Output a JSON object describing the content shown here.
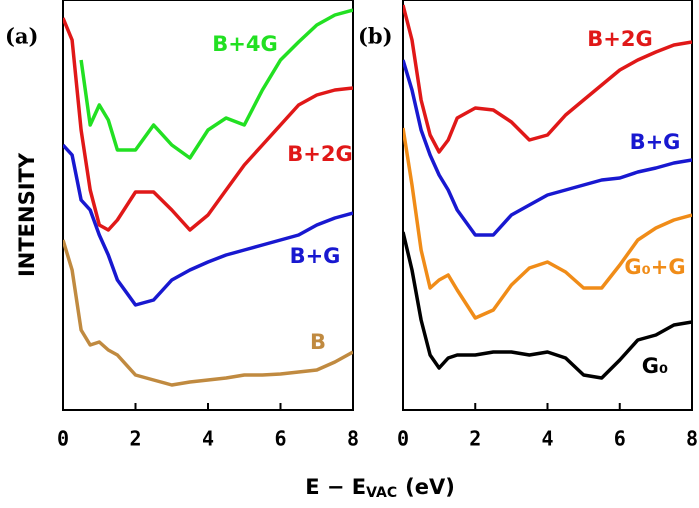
{
  "ylabel": "INTENSITY",
  "xlabel": {
    "text": "E − E",
    "sub": "VAC",
    "tail": "(eV)"
  },
  "chart_data": [
    {
      "type": "line",
      "title": "(a)",
      "x": [
        0,
        0.25,
        0.5,
        0.75,
        1,
        1.25,
        1.5,
        2,
        2.5,
        3,
        3.5,
        4,
        4.5,
        5,
        5.5,
        6,
        6.5,
        7,
        7.5,
        8
      ],
      "xlim": [
        0,
        8
      ],
      "xticks": [
        0,
        2,
        4,
        6,
        8
      ],
      "ylim": [
        0,
        410
      ],
      "series": [
        {
          "name": "B+4G",
          "color": "#22e022",
          "values": [
            null,
            null,
            350,
            285,
            305,
            290,
            260,
            260,
            285,
            265,
            252,
            280,
            292,
            285,
            320,
            350,
            368,
            385,
            395,
            400
          ]
        },
        {
          "name": "B+2G",
          "color": "#e01818",
          "values": [
            392,
            370,
            280,
            220,
            185,
            180,
            190,
            218,
            218,
            200,
            180,
            195,
            220,
            245,
            265,
            285,
            305,
            315,
            320,
            322
          ]
        },
        {
          "name": "B+G",
          "color": "#1818d0",
          "values": [
            265,
            255,
            210,
            200,
            175,
            155,
            130,
            105,
            110,
            130,
            140,
            148,
            155,
            160,
            165,
            170,
            175,
            185,
            192,
            197
          ]
        },
        {
          "name": "B",
          "color": "#c08a40",
          "values": [
            170,
            140,
            80,
            65,
            68,
            60,
            55,
            35,
            30,
            25,
            28,
            30,
            32,
            35,
            35,
            36,
            38,
            40,
            48,
            58
          ]
        }
      ]
    },
    {
      "type": "line",
      "title": "(b)",
      "x": [
        0,
        0.25,
        0.5,
        0.75,
        1,
        1.25,
        1.5,
        2,
        2.5,
        3,
        3.5,
        4,
        4.5,
        5,
        5.5,
        6,
        6.5,
        7,
        7.5,
        8
      ],
      "xlim": [
        0,
        8
      ],
      "xticks": [
        0,
        2,
        4,
        6,
        8
      ],
      "ylim": [
        0,
        410
      ],
      "series": [
        {
          "name": "B+2G",
          "color": "#e01818",
          "values": [
            405,
            370,
            310,
            275,
            258,
            270,
            292,
            302,
            300,
            288,
            270,
            275,
            295,
            310,
            325,
            340,
            350,
            358,
            365,
            368
          ]
        },
        {
          "name": "B+G",
          "color": "#1818d0",
          "values": [
            350,
            320,
            280,
            255,
            235,
            220,
            200,
            175,
            175,
            195,
            205,
            215,
            220,
            225,
            230,
            232,
            238,
            242,
            247,
            250
          ]
        },
        {
          "name": "G₀+G",
          "color": "#f08c18",
          "values": [
            282,
            225,
            160,
            122,
            130,
            135,
            120,
            92,
            100,
            125,
            142,
            148,
            138,
            122,
            122,
            145,
            170,
            182,
            190,
            195
          ]
        },
        {
          "name": "G₀",
          "color": "#000000",
          "values": [
            178,
            140,
            90,
            55,
            42,
            52,
            55,
            55,
            58,
            58,
            55,
            58,
            52,
            35,
            32,
            50,
            70,
            75,
            85,
            88
          ]
        }
      ]
    }
  ]
}
